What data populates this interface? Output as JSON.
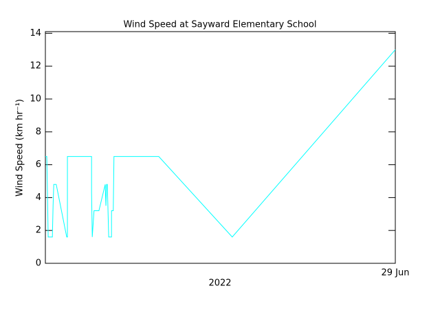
{
  "chart_data": {
    "type": "line",
    "title": "Wind Speed at Sayward Elementary School",
    "xlabel": "2022",
    "ylabel": "Wind Speed (km hr⁻¹)",
    "x": [
      0,
      0.4,
      0.6,
      0.8,
      2.0,
      2.2,
      2.4,
      3.1,
      6.1,
      6.3,
      6.3,
      13.2,
      13.2,
      13.4,
      13.9,
      15.3,
      17.1,
      17.3,
      17.5,
      17.7,
      18.1,
      18.9,
      18.9,
      19.4,
      19.6,
      32.4,
      53.4,
      100
    ],
    "series": [
      {
        "color": "#00ffff",
        "values": [
          6.5,
          6.5,
          4.3,
          1.6,
          1.6,
          3.5,
          4.8,
          4.8,
          1.6,
          1.6,
          6.5,
          6.5,
          4.3,
          1.6,
          3.2,
          3.2,
          4.8,
          3.5,
          4.8,
          4.8,
          1.6,
          1.6,
          3.2,
          3.2,
          6.5,
          6.5,
          1.6,
          13.0
        ]
      }
    ],
    "xlim": [
      0,
      100
    ],
    "xticks": [
      {
        "value": 100,
        "label": "29 Jun"
      }
    ],
    "ylim": [
      0,
      14.1
    ],
    "yticks": [
      0,
      2,
      4,
      6,
      8,
      10,
      12,
      14
    ]
  }
}
